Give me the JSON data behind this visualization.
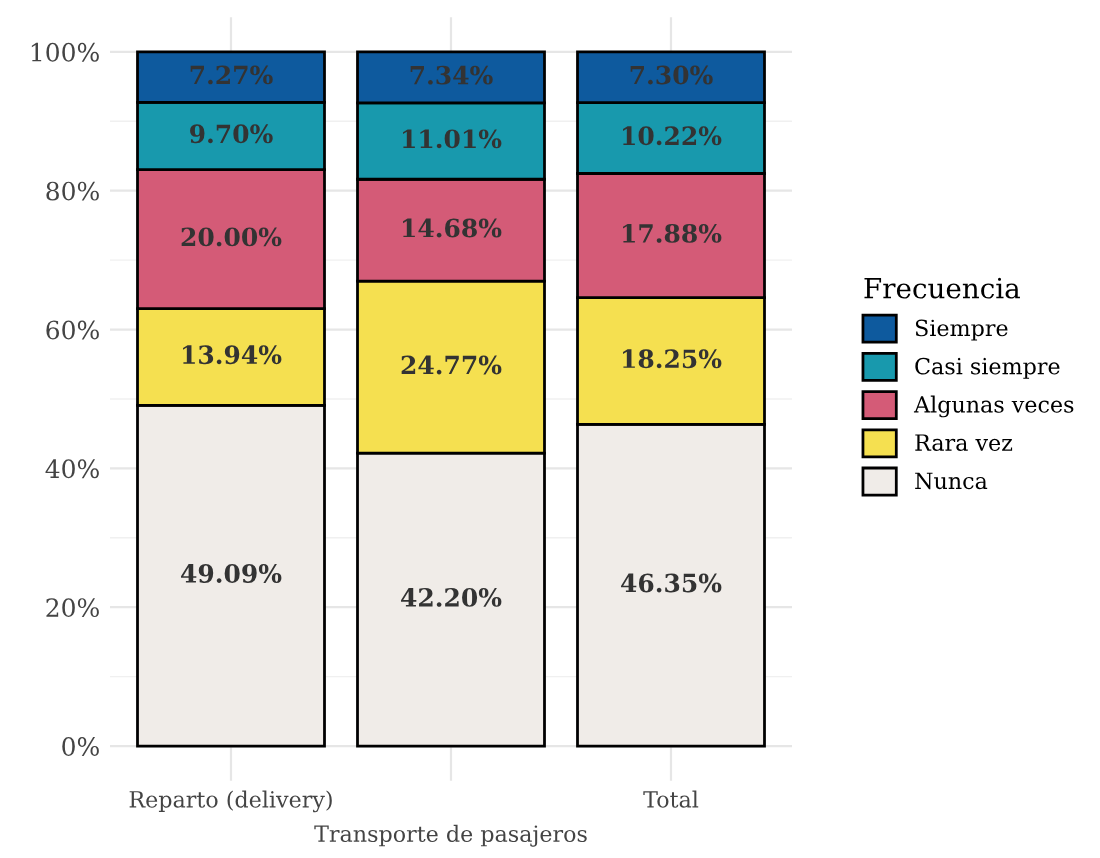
{
  "chart_data": {
    "type": "bar",
    "stacked": true,
    "legend_title": "Frecuencia",
    "legend": "right",
    "grid": true,
    "categories": [
      "Reparto (delivery)",
      "Transporte de pasajeros",
      "Total"
    ],
    "ylim": [
      -5,
      105
    ],
    "yticks": [
      {
        "value": 0,
        "label": "0%"
      },
      {
        "value": 20,
        "label": "20%"
      },
      {
        "value": 40,
        "label": "40%"
      },
      {
        "value": 60,
        "label": "60%"
      },
      {
        "value": 80,
        "label": "80%"
      },
      {
        "value": 100,
        "label": "100%"
      }
    ],
    "series": [
      {
        "name": "Nunca",
        "color": "#f0ece8",
        "values": [
          49.09,
          42.2,
          46.35
        ],
        "value_labels": [
          "49.09%",
          "42.20%",
          "46.35%"
        ]
      },
      {
        "name": "Rara vez",
        "color": "#f5e050",
        "values": [
          13.94,
          24.77,
          18.25
        ],
        "value_labels": [
          "13.94%",
          "24.77%",
          "18.25%"
        ]
      },
      {
        "name": "Algunas veces",
        "color": "#d45b77",
        "values": [
          20.0,
          14.68,
          17.88
        ],
        "value_labels": [
          "20.00%",
          "14.68%",
          "17.88%"
        ]
      },
      {
        "name": "Casi siempre",
        "color": "#1899ad",
        "values": [
          9.7,
          11.01,
          10.22
        ],
        "value_labels": [
          "9.70%",
          "11.01%",
          "10.22%"
        ]
      },
      {
        "name": "Siempre",
        "color": "#0e5a9e",
        "values": [
          7.27,
          7.34,
          7.3
        ],
        "value_labels": [
          "7.27%",
          "7.34%",
          "7.30%"
        ]
      }
    ]
  }
}
